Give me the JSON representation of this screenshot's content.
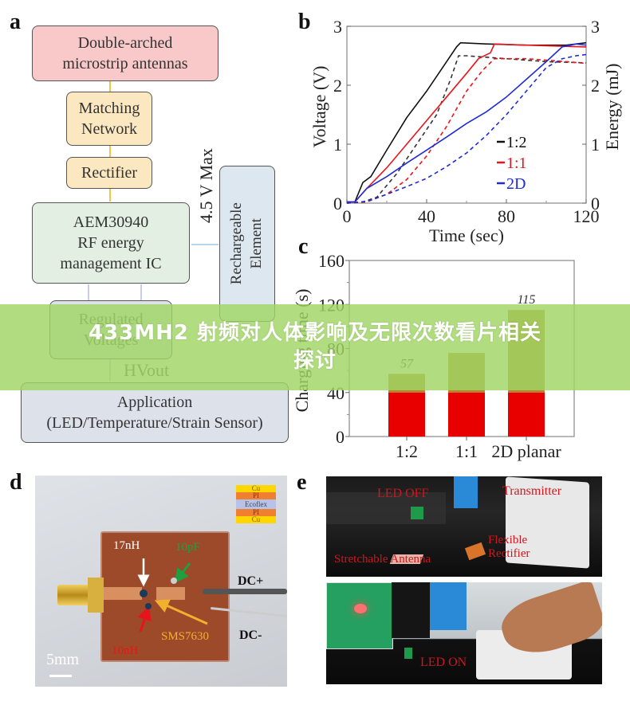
{
  "panels": {
    "a": {
      "letter": "a",
      "blocks": {
        "antennas": {
          "line1": "Double-arched",
          "line2": "microstrip  antennas"
        },
        "matching": {
          "line1": "Matching",
          "line2": "Network"
        },
        "rectifier": {
          "label": "Rectifier"
        },
        "ic": {
          "line1": "AEM30940",
          "line2": "RF energy",
          "line3": "management  IC"
        },
        "regulated": {
          "line1": "Regulated",
          "line2": "Voltages"
        },
        "rechargeable": {
          "line1": "Rechargeable",
          "line2": "Element"
        },
        "application": {
          "line1": "Application",
          "line2": "(LED/Temperature/Strain  Sensor)"
        }
      },
      "max_label": "4.5 V Max",
      "hvout_label": "HVout",
      "colors": {
        "antennas": "#f9c9c9",
        "matching": "#fbe7c0",
        "ic": "#e3efe3",
        "rechargeable": "#dde7ef",
        "application": "#dde2ea",
        "arrow_orange": "#f5c542",
        "arrow_blue": "#b8d4e8"
      }
    },
    "b": {
      "letter": "b"
    },
    "c": {
      "letter": "c"
    },
    "d": {
      "letter": "d",
      "labels": {
        "l17nH": "17nH",
        "l10pF": "10pF",
        "l10nH": "10nH",
        "sms": "SMS7630",
        "dcp": "DC+",
        "dcm": "DC-",
        "scale": "5mm"
      },
      "stack_layers": [
        "Cu",
        "PI",
        "Ecoflex",
        "PI",
        "Cu"
      ],
      "colors": {
        "cu": "#ffd700",
        "pi": "#f07f30",
        "ecoflex": "#b6c2e8"
      }
    },
    "e": {
      "letter": "e",
      "top_labels": {
        "led_off": "LED OFF",
        "transmitter": "Transmitter",
        "antenna": "Stretchable  Antenna",
        "flex1": "Flexible",
        "flex2": "Rectifier"
      },
      "bottom_labels": {
        "led_on": "LED ON"
      }
    }
  },
  "banner": {
    "line1": "433MH2 射频对人体影响及无限次数看片相关",
    "line2": "探讨"
  },
  "chart_data": [
    {
      "id": "b",
      "type": "line",
      "title": "",
      "xlabel": "Time (sec)",
      "ylabel": "Voltage (V)",
      "y2label": "Energy (mJ)",
      "xlim": [
        0,
        120
      ],
      "ylim": [
        0,
        3
      ],
      "y2lim": [
        0,
        3
      ],
      "xticks": [
        0,
        40,
        80,
        120
      ],
      "yticks": [
        0,
        1,
        2,
        3
      ],
      "y2ticks": [
        0,
        1,
        2,
        3
      ],
      "legend": [
        {
          "name": "1:2",
          "color": "#111111"
        },
        {
          "name": "1:1",
          "color": "#e8141b"
        },
        {
          "name": "2D",
          "color": "#1f2bd6"
        }
      ],
      "legend_position": "lower right",
      "series": [
        {
          "name": "1:2 voltage",
          "style": "solid",
          "color": "#111111",
          "x": [
            0,
            4,
            8,
            12,
            20,
            30,
            40,
            50,
            55,
            57,
            70,
            90,
            110,
            120
          ],
          "y": [
            0.02,
            0.02,
            0.35,
            0.45,
            0.9,
            1.45,
            1.9,
            2.4,
            2.65,
            2.72,
            2.7,
            2.68,
            2.68,
            2.72
          ]
        },
        {
          "name": "1:2 energy",
          "style": "dashed",
          "color": "#333333",
          "x": [
            0,
            8,
            15,
            25,
            35,
            45,
            52,
            56,
            60,
            80,
            100,
            120
          ],
          "y": [
            0.0,
            0.02,
            0.1,
            0.5,
            1.0,
            1.5,
            2.1,
            2.5,
            2.5,
            2.45,
            2.4,
            2.38
          ]
        },
        {
          "name": "1:1 voltage",
          "style": "solid",
          "color": "#e8141b",
          "x": [
            0,
            4,
            10,
            20,
            30,
            40,
            50,
            60,
            66,
            72,
            74,
            90,
            110,
            120
          ],
          "y": [
            0.02,
            0.02,
            0.25,
            0.6,
            1.0,
            1.4,
            1.8,
            2.2,
            2.45,
            2.55,
            2.7,
            2.68,
            2.66,
            2.65
          ]
        },
        {
          "name": "1:1 energy",
          "style": "dashed",
          "color": "#e8141b",
          "x": [
            0,
            10,
            20,
            30,
            40,
            50,
            60,
            68,
            74,
            90,
            110,
            120
          ],
          "y": [
            0.0,
            0.02,
            0.15,
            0.4,
            0.8,
            1.3,
            1.9,
            2.25,
            2.45,
            2.45,
            2.4,
            2.37
          ]
        },
        {
          "name": "2D voltage",
          "style": "solid",
          "color": "#1f2bd6",
          "x": [
            0,
            4,
            10,
            20,
            30,
            40,
            50,
            60,
            70,
            80,
            90,
            100,
            108,
            115,
            120
          ],
          "y": [
            0.02,
            0.02,
            0.25,
            0.45,
            0.68,
            0.9,
            1.12,
            1.35,
            1.55,
            1.8,
            2.1,
            2.4,
            2.65,
            2.7,
            2.68
          ]
        },
        {
          "name": "2D energy",
          "style": "dashed",
          "color": "#1f2bd6",
          "x": [
            0,
            10,
            20,
            30,
            40,
            50,
            60,
            70,
            80,
            90,
            100,
            108,
            115,
            120
          ],
          "y": [
            0.0,
            0.03,
            0.15,
            0.28,
            0.42,
            0.62,
            0.85,
            1.15,
            1.5,
            1.9,
            2.3,
            2.45,
            2.5,
            2.52
          ]
        }
      ]
    },
    {
      "id": "c",
      "type": "bar",
      "title": "",
      "xlabel": "",
      "ylabel": "Charging time (s)",
      "categories": [
        "1:2",
        "1:1",
        "2D planar"
      ],
      "values": [
        57,
        76,
        115
      ],
      "value_labels": [
        "57",
        "",
        "115"
      ],
      "ylim": [
        0,
        160
      ],
      "yticks": [
        0,
        40,
        80,
        120,
        160
      ],
      "colors": {
        "upper": "#b8862a",
        "lower": "#e80000"
      }
    }
  ]
}
